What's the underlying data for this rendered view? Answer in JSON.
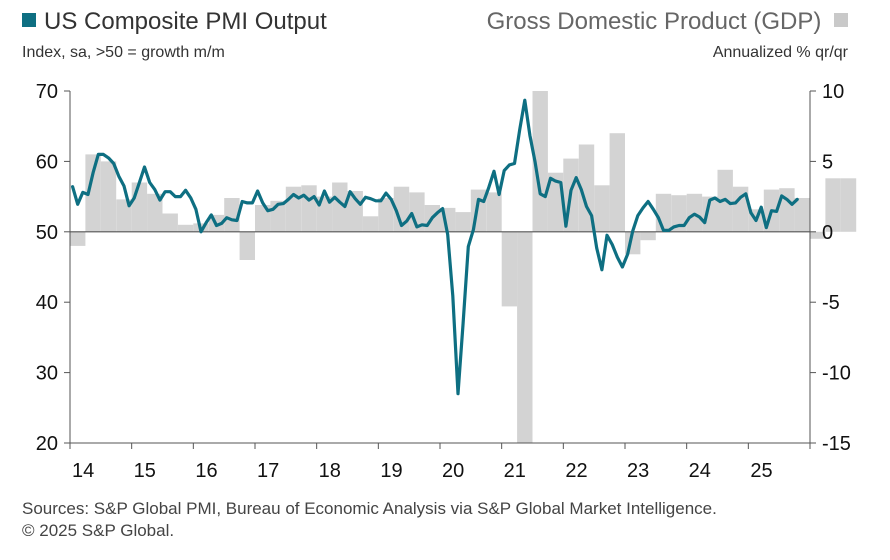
{
  "legend": {
    "left_title": "US Composite PMI Output",
    "left_subtitle": "Index, sa, >50 = growth m/m",
    "right_title": "Gross Domestic Product (GDP)",
    "right_subtitle": "Annualized % qr/qr"
  },
  "colors": {
    "pmi": "#0e6f82",
    "gdp": "#d3d3d3",
    "axis": "#555555"
  },
  "footer": {
    "source": "Sources: S&P Global PMI, Bureau of Economic Analysis via S&P Global Market Intelligence.",
    "copyright": "© 2025 S&P Global."
  },
  "chart_data": {
    "type": "bar+line",
    "x_ticks": [
      "14",
      "15",
      "16",
      "17",
      "18",
      "19",
      "20",
      "21",
      "22",
      "23",
      "24",
      "25"
    ],
    "left_axis": {
      "ticks": [
        20,
        30,
        40,
        50,
        60,
        70
      ],
      "ylim": [
        20,
        70
      ]
    },
    "right_axis": {
      "ticks": [
        -15,
        -10,
        -5,
        0,
        5,
        10
      ],
      "ylim": [
        -15,
        10
      ]
    },
    "gdp_series": {
      "name": "Gross Domestic Product (GDP)",
      "period_start": "2014Q1",
      "values": [
        -1.0,
        5.5,
        5.0,
        2.3,
        3.5,
        2.7,
        1.3,
        0.5,
        0.6,
        1.2,
        2.4,
        -2.0,
        1.9,
        2.2,
        3.2,
        3.3,
        2.5,
        3.5,
        2.9,
        1.1,
        2.4,
        3.2,
        2.8,
        1.9,
        1.7,
        1.4,
        3.0,
        2.8,
        -5.3,
        -28.0,
        34.8,
        4.2,
        5.2,
        6.2,
        3.3,
        7.0,
        -1.6,
        -0.6,
        2.7,
        2.6,
        2.7,
        2.5,
        4.4,
        3.2,
        1.6,
        3.0,
        3.1,
        2.4,
        -0.5,
        3.8,
        3.8
      ]
    },
    "pmi_series": {
      "name": "US Composite PMI Output",
      "period_start": "2014-01",
      "values": [
        56.4,
        53.9,
        55.6,
        55.3,
        58.4,
        61.0,
        61.0,
        60.5,
        59.7,
        57.9,
        56.5,
        53.7,
        54.8,
        57.0,
        59.2,
        57.0,
        56.0,
        54.5,
        55.7,
        55.7,
        55.0,
        55.0,
        55.9,
        54.8,
        53.2,
        50.0,
        51.3,
        52.4,
        50.9,
        51.2,
        52.0,
        51.7,
        51.6,
        54.3,
        54.1,
        54.1,
        55.8,
        54.1,
        53.0,
        53.2,
        53.9,
        54.0,
        54.6,
        55.3,
        54.8,
        55.2,
        54.5,
        55.0,
        53.8,
        55.8,
        54.2,
        54.9,
        54.2,
        53.6,
        55.7,
        54.7,
        53.9,
        54.9,
        54.7,
        54.4,
        54.4,
        55.5,
        54.6,
        53.0,
        50.9,
        51.5,
        52.6,
        50.7,
        51.0,
        50.9,
        52.0,
        52.7,
        53.3,
        49.6,
        40.9,
        27.0,
        37.0,
        47.9,
        50.3,
        54.6,
        54.3,
        56.3,
        58.6,
        55.3,
        58.7,
        59.5,
        59.7,
        64.5,
        68.7,
        63.7,
        59.9,
        55.4,
        55.0,
        57.6,
        57.2,
        57.0,
        50.8,
        55.9,
        57.7,
        56.0,
        53.6,
        52.3,
        47.7,
        44.6,
        49.5,
        48.2,
        46.4,
        45.0,
        46.8,
        50.1,
        52.3,
        53.4,
        54.3,
        53.2,
        52.0,
        50.2,
        50.2,
        50.7,
        50.9,
        50.9,
        52.0,
        52.5,
        52.1,
        51.3,
        54.5,
        54.8,
        54.3,
        54.6,
        54.0,
        54.1,
        54.9,
        55.4,
        52.7,
        51.6,
        53.5,
        50.6,
        53.0,
        52.9,
        55.1,
        54.6,
        53.9,
        54.6
      ]
    }
  }
}
